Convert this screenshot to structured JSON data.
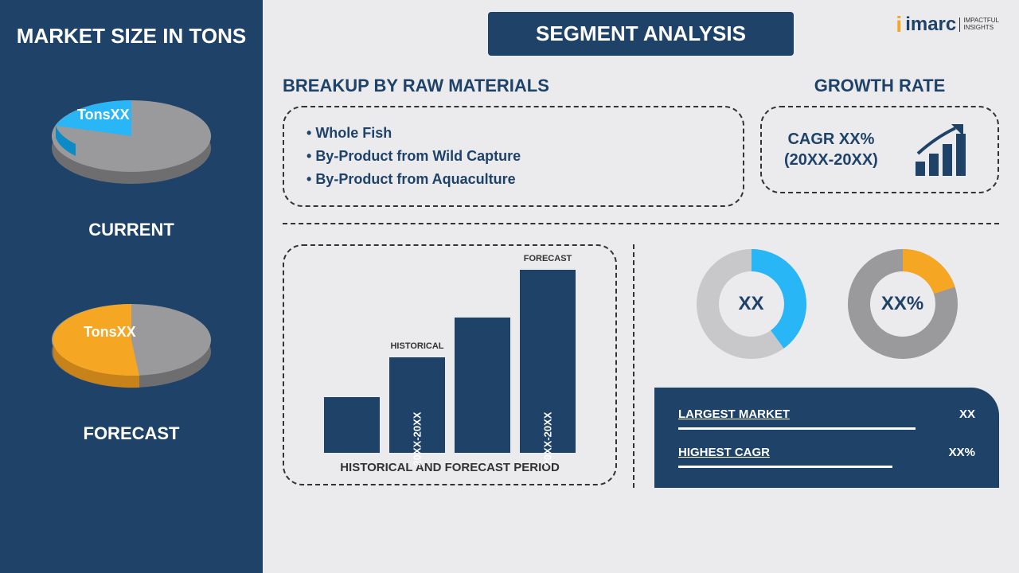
{
  "left": {
    "title": "MARKET SIZE IN TONS",
    "pie1": {
      "label": "TonsXX",
      "slice_pct": 25,
      "slice_color": "#29b6f6",
      "base_color": "#9a9a9c",
      "depth_color": "#6e6e70",
      "caption": "CURRENT"
    },
    "pie2": {
      "label": "TonsXX",
      "slice_pct": 60,
      "slice_color": "#f5a623",
      "base_color": "#9a9a9c",
      "depth_color": "#6e6e70",
      "caption": "FORECAST"
    }
  },
  "header": {
    "badge": "SEGMENT ANALYSIS"
  },
  "logo": {
    "brand": "imarc",
    "tagline1": "IMPACTFUL",
    "tagline2": "INSIGHTS"
  },
  "breakup": {
    "title": "BREAKUP BY RAW MATERIALS",
    "items": [
      "Whole Fish",
      "By-Product from Wild Capture",
      "By-Product from Aquaculture"
    ]
  },
  "growth": {
    "title": "GROWTH RATE",
    "line1": "CAGR XX%",
    "line2": "(20XX-20XX)",
    "icon_color": "#1e4268"
  },
  "bars": {
    "heights": [
      70,
      120,
      170,
      230
    ],
    "top_labels": [
      "",
      "HISTORICAL",
      "",
      "FORECAST"
    ],
    "in_labels": [
      "",
      "20XX-20XX",
      "",
      "20XX-20XX"
    ],
    "color": "#1e4268",
    "caption": "HISTORICAL AND FORECAST PERIOD"
  },
  "donuts": {
    "d1": {
      "pct": 40,
      "color": "#29b6f6",
      "track": "#c8c8ca",
      "center": "XX"
    },
    "d2": {
      "pct": 20,
      "color": "#f5a623",
      "track": "#9a9a9c",
      "center": "XX%"
    }
  },
  "stats": {
    "row1": {
      "label": "LARGEST MARKET",
      "value": "XX",
      "bar_pct": 80
    },
    "row2": {
      "label": "HIGHEST CAGR",
      "value": "XX%",
      "bar_pct": 72
    }
  },
  "colors": {
    "primary": "#1e4268",
    "bg": "#ebebed"
  }
}
